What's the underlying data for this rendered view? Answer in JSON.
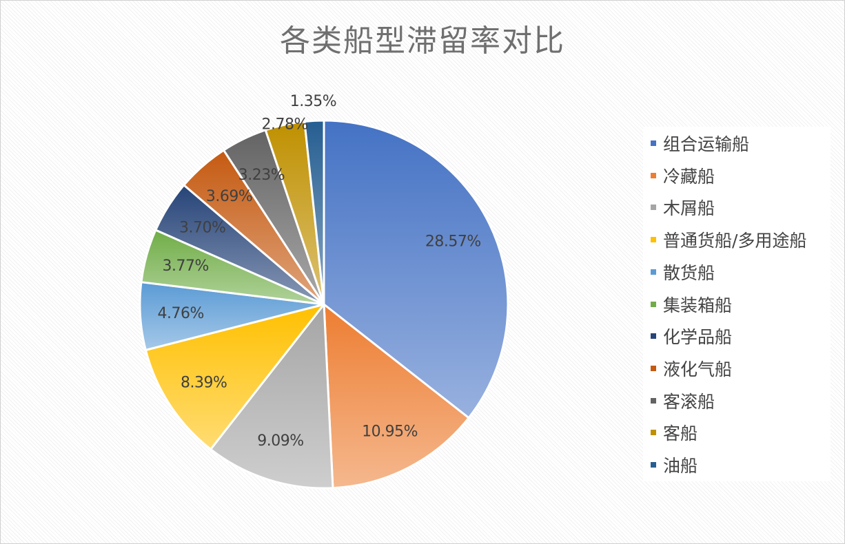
{
  "chart_data": {
    "type": "pie",
    "title": "各类船型滞留率对比",
    "legend_position": "right",
    "slices": [
      {
        "label": "组合运输船",
        "value": 28.57,
        "display": "28.57%",
        "color": "#4472c4"
      },
      {
        "label": "冷藏船",
        "value": 10.95,
        "display": "10.95%",
        "color": "#ed7d31"
      },
      {
        "label": "木屑船",
        "value": 9.09,
        "display": "9.09%",
        "color": "#a5a5a5"
      },
      {
        "label": "普通货船/多用途船",
        "value": 8.39,
        "display": "8.39%",
        "color": "#ffc000"
      },
      {
        "label": "散货船",
        "value": 4.76,
        "display": "4.76%",
        "color": "#5b9bd5"
      },
      {
        "label": "集装箱船",
        "value": 3.77,
        "display": "3.77%",
        "color": "#70ad47"
      },
      {
        "label": "化学品船",
        "value": 3.7,
        "display": "3.70%",
        "color": "#264478"
      },
      {
        "label": "液化气船",
        "value": 3.69,
        "display": "3.69%",
        "color": "#c55a11"
      },
      {
        "label": "客滚船",
        "value": 3.23,
        "display": "3.23%",
        "color": "#636363"
      },
      {
        "label": "客船",
        "value": 2.78,
        "display": "2.78%",
        "color": "#bf9000"
      },
      {
        "label": "油船",
        "value": 1.35,
        "display": "1.35%",
        "color": "#255e91"
      }
    ]
  }
}
